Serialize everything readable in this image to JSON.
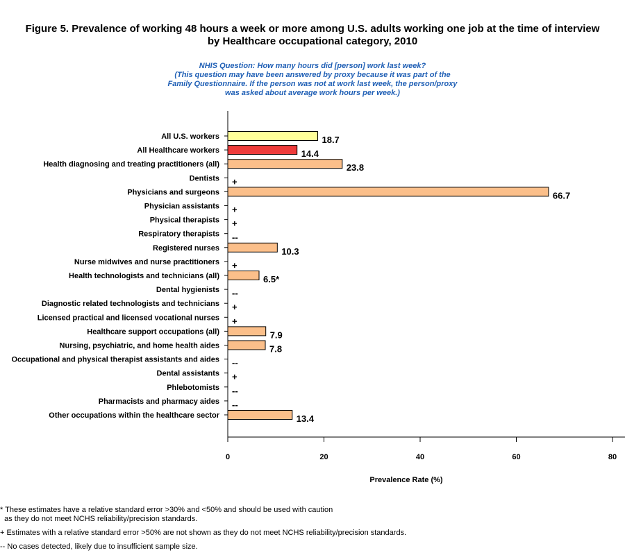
{
  "title_line1": "Figure 5. Prevalence of working 48 hours a week or more among U.S. adults working one job at the time of interview",
  "title_line2": "by Healthcare occupational category, 2010",
  "question_lines": [
    "NHIS Question: How many hours did [person] work last week?",
    "(This question may have been answered by proxy because it was part of the",
    "Family Questionnaire. If the person was not at work last week, the person/proxy",
    "was asked about average work hours per week.)"
  ],
  "footnotes": [
    "* These estimates have a relative standard error >30% and <50% and should be used with caution",
    "  as they do not meet NCHS reliability/precision standards.",
    "+ Estimates with a relative standard error >50% are not shown as they do not meet NCHS reliability/precision standards.",
    "-- No cases detected, likely due to insufficient sample size."
  ],
  "colors": {
    "all_us": "#ffff99",
    "all_healthcare": "#ee3b3b",
    "category": "#fbbf8a",
    "question_text": "#1f5fb5"
  },
  "chart_data": {
    "type": "bar",
    "orientation": "horizontal",
    "xlabel": "Prevalence Rate (%)",
    "xlim": [
      0,
      80
    ],
    "xticks": [
      0,
      20,
      40,
      60,
      80
    ],
    "grid": false,
    "categories": [
      "All U.S. workers",
      "All Healthcare workers",
      "Health diagnosing and treating practitioners (all)",
      "Dentists",
      "Physicians and surgeons",
      "Physician assistants",
      "Physical therapists",
      "Respiratory therapists",
      "Registered nurses",
      "Nurse midwives and nurse practitioners",
      "Health technologists and technicians (all)",
      "Dental hygienists",
      "Diagnostic related technologists and technicians",
      "Licensed practical and licensed vocational nurses",
      "Healthcare support occupations (all)",
      "Nursing, psychiatric, and home health aides",
      "Occupational and physical therapist assistants and aides",
      "Dental assistants",
      "Phlebotomists",
      "Pharmacists and pharmacy aides",
      "Other occupations within the healthcare sector"
    ],
    "values": [
      18.7,
      14.4,
      23.8,
      null,
      66.7,
      null,
      null,
      null,
      10.3,
      null,
      6.5,
      null,
      null,
      null,
      7.9,
      7.8,
      null,
      null,
      null,
      null,
      13.4
    ],
    "labels": [
      "18.7",
      "14.4",
      "23.8",
      "+",
      "66.7",
      "+",
      "+",
      "--",
      "10.3",
      "+",
      "6.5*",
      "--",
      "+",
      "+",
      "7.9",
      "7.8",
      "--",
      "+",
      "--",
      "--",
      "13.4"
    ],
    "bar_color_keys": [
      "all_us",
      "all_healthcare",
      "category",
      "category",
      "category",
      "category",
      "category",
      "category",
      "category",
      "category",
      "category",
      "category",
      "category",
      "category",
      "category",
      "category",
      "category",
      "category",
      "category",
      "category",
      "category"
    ]
  }
}
